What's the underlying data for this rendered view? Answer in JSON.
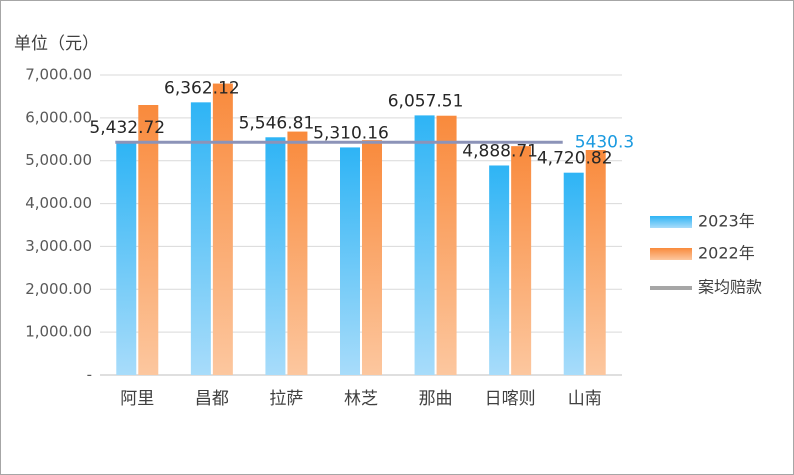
{
  "chart_data": {
    "type": "bar",
    "y_label": "单位（元）",
    "categories": [
      "阿里",
      "昌都",
      "拉萨",
      "林芝",
      "那曲",
      "日喀则",
      "山南"
    ],
    "series": [
      {
        "name": "2023年",
        "color": "#2eb4f5",
        "values": [
          5432.72,
          6362.12,
          5546.81,
          5310.16,
          6057.51,
          4888.71,
          4720.82
        ],
        "value_labels": [
          "5,432.72",
          "6,362.12",
          "5,546.81",
          "5,310.16",
          "6,057.51",
          "4,888.71",
          "4,720.82"
        ]
      },
      {
        "name": "2022年",
        "color": "#f98a3c",
        "values": [
          6300,
          6800,
          5680,
          5480,
          6050,
          5340,
          5250
        ]
      },
      {
        "name": "案均赔款",
        "type": "line",
        "color": "#8c93b8",
        "values": [
          5430.3,
          5430.3,
          5430.3,
          5430.3,
          5430.3,
          5430.3,
          5430.3
        ],
        "value_labels": [
          null,
          null,
          null,
          null,
          null,
          null,
          "5430.3"
        ],
        "label_color": "#1a9ae0"
      }
    ],
    "ylim": [
      0,
      7000
    ],
    "yticks": [
      {
        "value": 0,
        "label": "-"
      },
      {
        "value": 1000,
        "label": "1,000.00"
      },
      {
        "value": 2000,
        "label": "2,000.00"
      },
      {
        "value": 3000,
        "label": "3,000.00"
      },
      {
        "value": 4000,
        "label": "4,000.00"
      },
      {
        "value": 5000,
        "label": "5,000.00"
      },
      {
        "value": 6000,
        "label": "6,000.00"
      },
      {
        "value": 7000,
        "label": "7,000.00"
      }
    ],
    "grid": true,
    "legend": "right"
  }
}
